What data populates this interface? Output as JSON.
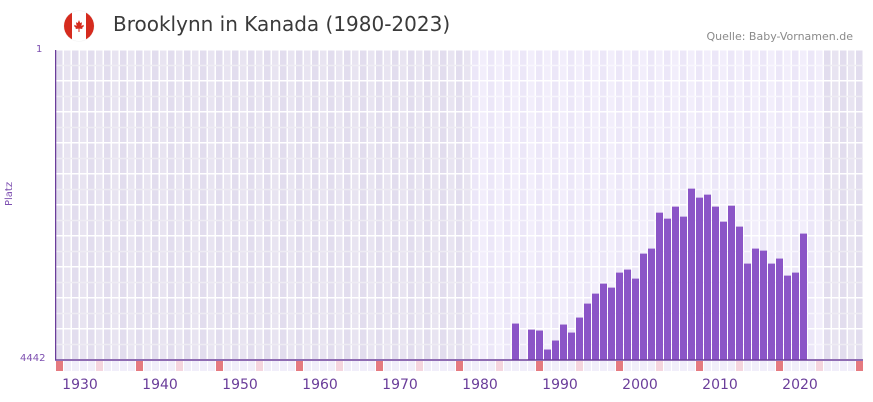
{
  "header": {
    "title": "Brooklynn in Kanada (1980-2023)",
    "source": "Quelle: Baby-Vornamen.de",
    "flag_icon": "canada-flag-icon"
  },
  "colors": {
    "bar": "#8b55c7",
    "axis": "#6a3d9a",
    "bg_outside": "#e4dff0",
    "bg_inside": "#efebfa",
    "decade_marker": "#e57a80",
    "half_decade_marker": "#f5d5de"
  },
  "chart_data": {
    "type": "bar",
    "title": "Brooklynn in Kanada (1980-2023)",
    "xlabel": "",
    "ylabel": "Platz",
    "y_inverted": true,
    "ylim": [
      4442,
      1
    ],
    "xlim": [
      1928,
      2028
    ],
    "x_tick_labels": [
      "1930",
      "1940",
      "1950",
      "1960",
      "1970",
      "1980",
      "1990",
      "2000",
      "2010",
      "2020"
    ],
    "y_tick_labels": [
      "1",
      "4442"
    ],
    "highlight_range": [
      1980,
      2023
    ],
    "grid": true,
    "categories": [
      1985,
      1986,
      1987,
      1988,
      1989,
      1990,
      1991,
      1992,
      1993,
      1994,
      1995,
      1996,
      1997,
      1998,
      1999,
      2000,
      2001,
      2002,
      2003,
      2004,
      2005,
      2006,
      2007,
      2008,
      2009,
      2010,
      2011,
      2012,
      2013,
      2014,
      2015,
      2016,
      2017,
      2018,
      2019,
      2020,
      2021,
      2022
    ],
    "values": [
      3920,
      null,
      4006,
      4020,
      4292,
      4163,
      3934,
      4049,
      3834,
      3634,
      3491,
      3348,
      3405,
      3190,
      3147,
      3276,
      2918,
      2846,
      2331,
      2417,
      2245,
      2388,
      1987,
      2116,
      2073,
      2245,
      2460,
      2231,
      2531,
      3061,
      2846,
      2875,
      3061,
      2989,
      3233,
      3190,
      2631,
      null
    ]
  }
}
